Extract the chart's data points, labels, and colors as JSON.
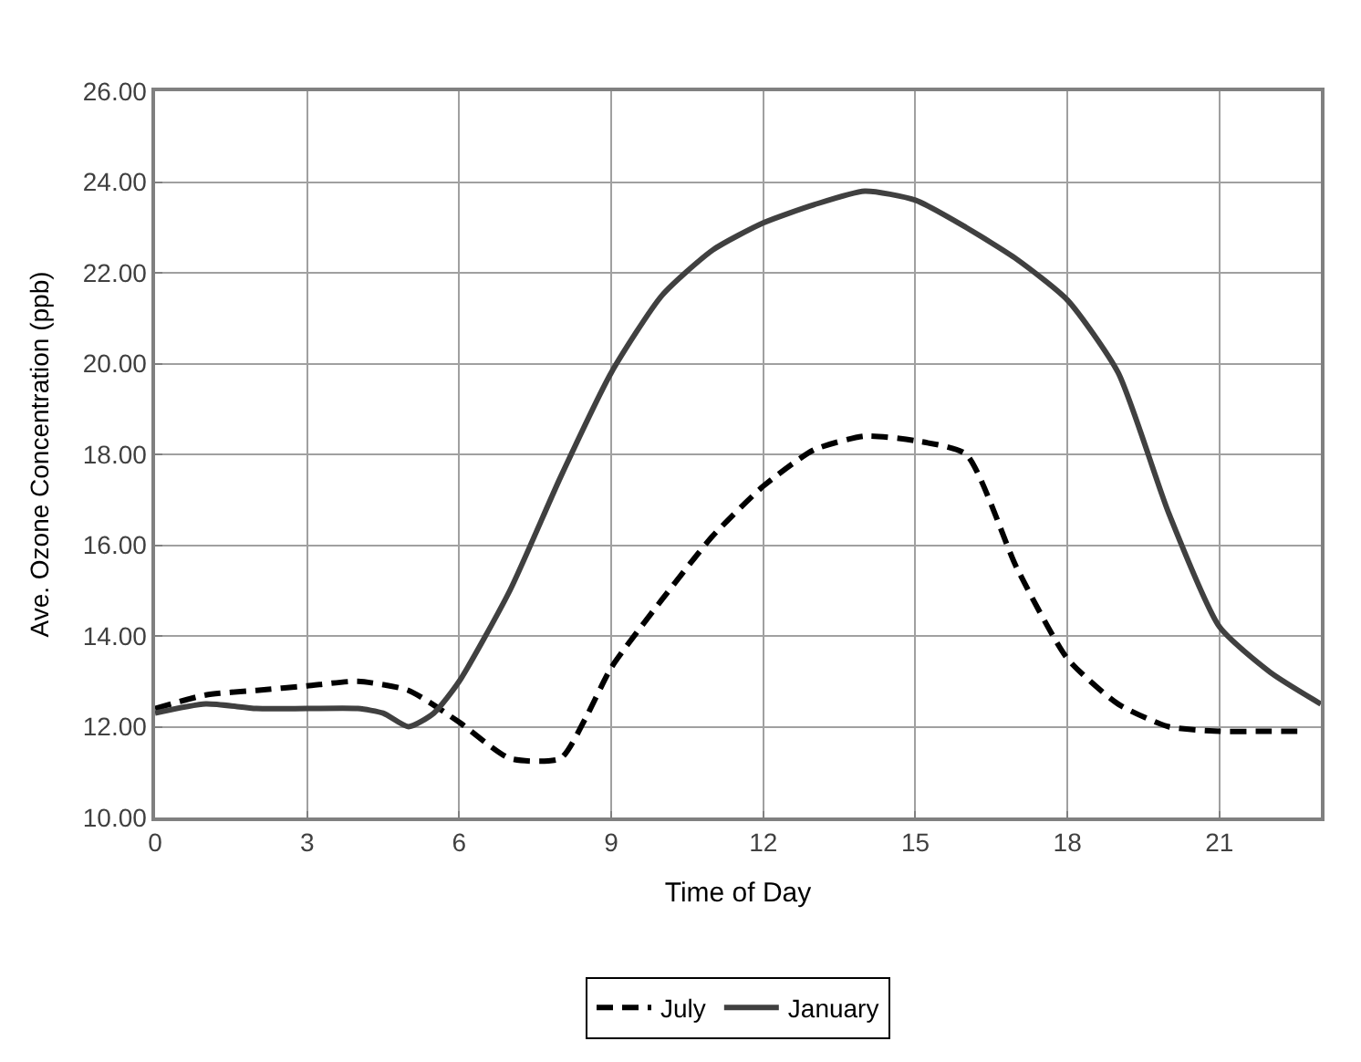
{
  "chart_data": {
    "type": "line",
    "xlabel": "Time of Day",
    "ylabel": "Ave. Ozone Concentration (ppb)",
    "series": [
      {
        "name": "July",
        "color": "#000000",
        "line_style": "dashed",
        "x": [
          0,
          1,
          2,
          3,
          4,
          5,
          6,
          7,
          8,
          8.5,
          9,
          10,
          11,
          12,
          13,
          14,
          15,
          16,
          17,
          18,
          19,
          20,
          21,
          22,
          22.6
        ],
        "values": [
          12.4,
          12.7,
          12.8,
          12.9,
          13.0,
          12.8,
          12.1,
          11.3,
          11.3,
          12.2,
          13.3,
          14.8,
          16.2,
          17.3,
          18.1,
          18.4,
          18.3,
          18.0,
          15.5,
          13.5,
          12.5,
          12.0,
          11.9,
          11.9,
          11.9
        ]
      },
      {
        "name": "January",
        "color": "#404040",
        "line_style": "solid",
        "x": [
          0,
          1,
          2,
          3,
          4,
          4.5,
          5,
          5.5,
          6,
          7,
          8,
          9,
          10,
          11,
          12,
          13,
          14,
          15,
          16,
          17,
          18,
          19,
          20,
          21,
          22,
          23
        ],
        "values": [
          12.3,
          12.5,
          12.4,
          12.4,
          12.4,
          12.3,
          12.0,
          12.3,
          13.0,
          15.0,
          17.5,
          19.8,
          21.5,
          22.5,
          23.1,
          23.5,
          23.8,
          23.6,
          23.0,
          22.3,
          21.4,
          19.8,
          16.7,
          14.2,
          13.2,
          12.5
        ]
      }
    ],
    "xlim": [
      0,
      23
    ],
    "xticks": [
      0,
      3,
      6,
      9,
      12,
      15,
      18,
      21
    ],
    "ylim": [
      10,
      26
    ],
    "yticks": [
      {
        "value": 10,
        "label": "10.00"
      },
      {
        "value": 12,
        "label": "12.00"
      },
      {
        "value": 14,
        "label": "14.00"
      },
      {
        "value": 16,
        "label": "16.00"
      },
      {
        "value": 18,
        "label": "18.00"
      },
      {
        "value": 20,
        "label": "20.00"
      },
      {
        "value": 22,
        "label": "22.00"
      },
      {
        "value": 24,
        "label": "24.00"
      },
      {
        "value": 26,
        "label": "26.00"
      }
    ],
    "grid": true,
    "legend": "bottom",
    "marker": "none"
  }
}
